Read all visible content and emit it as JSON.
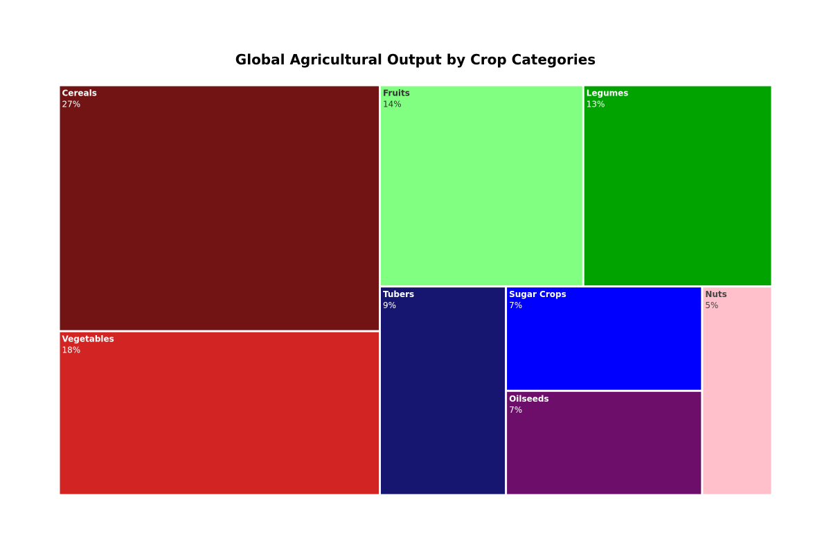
{
  "chart_data": {
    "type": "treemap",
    "title": "Global Agricultural Output by Crop Categories",
    "tiles": [
      {
        "name": "Cereals",
        "label": "27%",
        "value": 27,
        "color": "#731414",
        "text_color": "#ffffff"
      },
      {
        "name": "Vegetables",
        "label": "18%",
        "value": 18,
        "color": "#d32424",
        "text_color": "#ffffff"
      },
      {
        "name": "Fruits",
        "label": "14%",
        "value": 14,
        "color": "#80ff80",
        "text_color": "#333333"
      },
      {
        "name": "Legumes",
        "label": "13%",
        "value": 13,
        "color": "#00a300",
        "text_color": "#ffffff"
      },
      {
        "name": "Tubers",
        "label": "9%",
        "value": 9,
        "color": "#161670",
        "text_color": "#ffffff"
      },
      {
        "name": "Sugar Crops",
        "label": "7%",
        "value": 7,
        "color": "#0000ff",
        "text_color": "#ffffff"
      },
      {
        "name": "Oilseeds",
        "label": "7%",
        "value": 7,
        "color": "#6e0e6b",
        "text_color": "#ffffff"
      },
      {
        "name": "Nuts",
        "label": "5%",
        "value": 5,
        "color": "#ffc0cb",
        "text_color": "#444444"
      }
    ]
  }
}
